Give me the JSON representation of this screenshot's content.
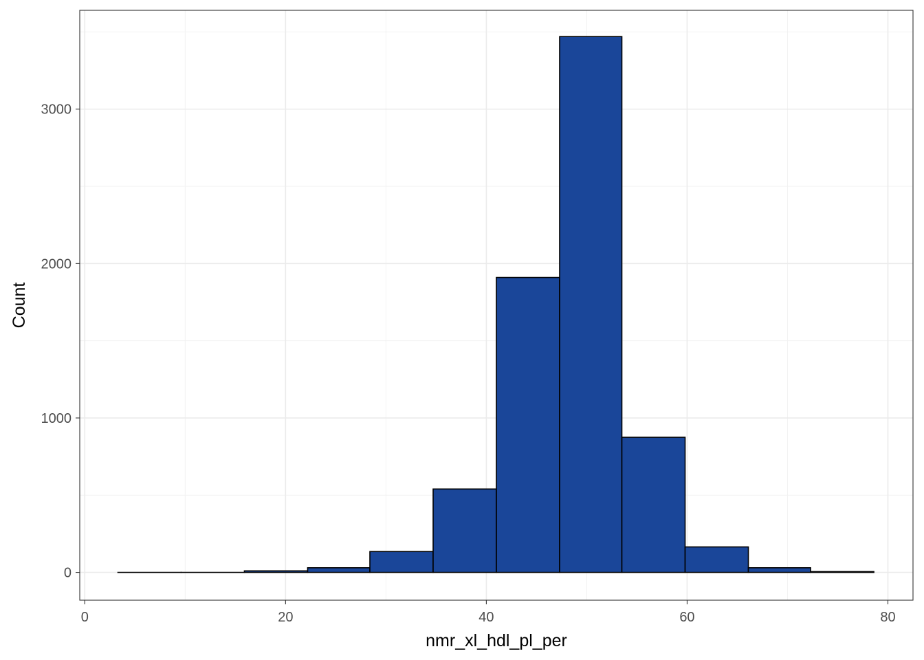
{
  "chart_data": {
    "type": "bar",
    "subtype": "histogram",
    "title": "",
    "xlabel": "nmr_xl_hdl_pl_per",
    "ylabel": "Count",
    "xlim": [
      -0.5,
      82.5
    ],
    "ylim": [
      -180,
      3640
    ],
    "x_ticks": [
      0,
      20,
      40,
      60,
      80
    ],
    "y_ticks": [
      0,
      1000,
      2000,
      3000
    ],
    "x_minor_ticks": [
      10,
      30,
      50,
      70
    ],
    "y_minor_ticks": [
      500,
      1500,
      2500,
      3500
    ],
    "grid": true,
    "legend": "none",
    "fill_color": "#1A4699",
    "edge_color": "#000000",
    "bins": [
      {
        "x0": 3.3,
        "x1": 9.6,
        "count": 0
      },
      {
        "x0": 9.6,
        "x1": 15.9,
        "count": 0
      },
      {
        "x0": 15.9,
        "x1": 22.2,
        "count": 10
      },
      {
        "x0": 22.2,
        "x1": 28.4,
        "count": 30
      },
      {
        "x0": 28.4,
        "x1": 34.7,
        "count": 135
      },
      {
        "x0": 34.7,
        "x1": 41.0,
        "count": 540
      },
      {
        "x0": 41.0,
        "x1": 47.3,
        "count": 1910
      },
      {
        "x0": 47.3,
        "x1": 53.5,
        "count": 3470
      },
      {
        "x0": 53.5,
        "x1": 59.8,
        "count": 875
      },
      {
        "x0": 59.8,
        "x1": 66.1,
        "count": 165
      },
      {
        "x0": 66.1,
        "x1": 72.3,
        "count": 30
      },
      {
        "x0": 72.3,
        "x1": 78.6,
        "count": 5
      }
    ]
  }
}
